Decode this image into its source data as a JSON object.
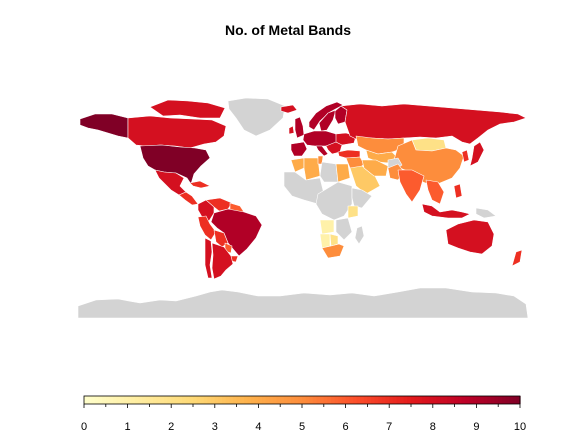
{
  "title": "No. of Metal Bands",
  "no_data_color": "#d3d3d3",
  "legend": {
    "min": 0,
    "max": 10,
    "tick_labels": [
      "0",
      "1",
      "2",
      "3",
      "4",
      "5",
      "6",
      "7",
      "8",
      "9",
      "10"
    ],
    "colors": [
      "#ffffcc",
      "#ffeda0",
      "#fed976",
      "#feb24c",
      "#fd8d3c",
      "#fc4e2a",
      "#e31a1c",
      "#bd0026",
      "#800026"
    ]
  },
  "regions": [
    {
      "name": "Greenland",
      "value": null
    },
    {
      "name": "Alaska",
      "value": 10
    },
    {
      "name": "Canada",
      "value": 8
    },
    {
      "name": "Canadian Arctic Islands",
      "value": 8
    },
    {
      "name": "United States",
      "value": 10
    },
    {
      "name": "Mexico",
      "value": 8
    },
    {
      "name": "Central America",
      "value": 7
    },
    {
      "name": "Cuba",
      "value": 7
    },
    {
      "name": "Colombia",
      "value": 8
    },
    {
      "name": "Venezuela",
      "value": 7
    },
    {
      "name": "Guianas",
      "value": 6
    },
    {
      "name": "Brazil",
      "value": 9
    },
    {
      "name": "Peru",
      "value": 7
    },
    {
      "name": "Bolivia",
      "value": 7
    },
    {
      "name": "Paraguay",
      "value": 6
    },
    {
      "name": "Uruguay",
      "value": 7
    },
    {
      "name": "Chile",
      "value": 8
    },
    {
      "name": "Argentina",
      "value": 8
    },
    {
      "name": "Iceland",
      "value": 8
    },
    {
      "name": "United Kingdom",
      "value": 9
    },
    {
      "name": "Ireland",
      "value": 8
    },
    {
      "name": "Norway",
      "value": 9
    },
    {
      "name": "Sweden",
      "value": 9
    },
    {
      "name": "Finland",
      "value": 9
    },
    {
      "name": "Central Europe",
      "value": 9
    },
    {
      "name": "Iberia",
      "value": 9
    },
    {
      "name": "Italy",
      "value": 9
    },
    {
      "name": "Balkans",
      "value": 8
    },
    {
      "name": "Ukraine",
      "value": 8
    },
    {
      "name": "Turkey",
      "value": 7
    },
    {
      "name": "Russia",
      "value": 8
    },
    {
      "name": "Kazakhstan",
      "value": 5
    },
    {
      "name": "Central Asia",
      "value": 4
    },
    {
      "name": "Mongolia",
      "value": 2
    },
    {
      "name": "China",
      "value": 5
    },
    {
      "name": "Korea",
      "value": 7
    },
    {
      "name": "Japan",
      "value": 8
    },
    {
      "name": "Middle East",
      "value": 5
    },
    {
      "name": "Arabia",
      "value": 3
    },
    {
      "name": "Iran",
      "value": 4
    },
    {
      "name": "Afghanistan",
      "value": null
    },
    {
      "name": "Pakistan",
      "value": 5
    },
    {
      "name": "India",
      "value": 6
    },
    {
      "name": "Southeast Asia",
      "value": 6
    },
    {
      "name": "Philippines",
      "value": 7
    },
    {
      "name": "Indonesia",
      "value": 8
    },
    {
      "name": "Papua New Guinea",
      "value": null
    },
    {
      "name": "Australia",
      "value": 8
    },
    {
      "name": "New Zealand",
      "value": 7
    },
    {
      "name": "Morocco",
      "value": 4
    },
    {
      "name": "Algeria",
      "value": 4
    },
    {
      "name": "Tunisia",
      "value": 5
    },
    {
      "name": "Libya",
      "value": null
    },
    {
      "name": "Egypt",
      "value": 4
    },
    {
      "name": "West Africa",
      "value": null
    },
    {
      "name": "Central Africa",
      "value": null
    },
    {
      "name": "Horn of Africa",
      "value": null
    },
    {
      "name": "Kenya",
      "value": 2
    },
    {
      "name": "Angola",
      "value": 1
    },
    {
      "name": "Namibia",
      "value": 1
    },
    {
      "name": "Botswana",
      "value": 2
    },
    {
      "name": "Mozambique",
      "value": null
    },
    {
      "name": "South Africa",
      "value": 5
    },
    {
      "name": "Madagascar",
      "value": null
    },
    {
      "name": "Antarctica",
      "value": null
    }
  ]
}
